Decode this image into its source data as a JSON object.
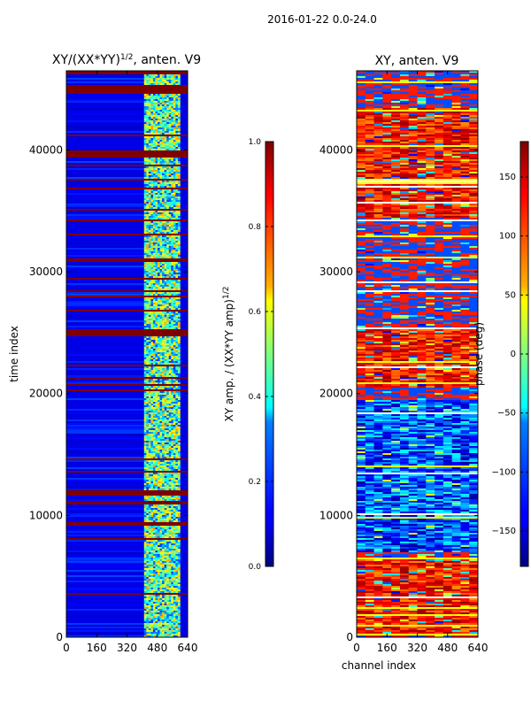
{
  "figure": {
    "suptitle": "2016-01-22 0.0-24.0",
    "shared_xlabel": "channel index"
  },
  "chart_data": [
    {
      "type": "heatmap",
      "title_main": "XY/(XX*YY)",
      "title_sup": "1/2",
      "title_rest": ", anten. V9",
      "xlabel": "",
      "ylabel": "time index",
      "xlim": [
        0,
        640
      ],
      "ylim": [
        0,
        46500
      ],
      "xticks": [
        0,
        160,
        320,
        480,
        640
      ],
      "yticks": [
        0,
        10000,
        20000,
        30000,
        40000
      ],
      "colormap": "jet",
      "colorbar": {
        "label_main": "XY amp. / (XX*YY amp)",
        "label_sup": "1/2",
        "range": [
          0.0,
          1.0
        ],
        "ticks": [
          0.0,
          0.2,
          0.4,
          0.6,
          0.8,
          1.0
        ],
        "tick_labels": [
          "0.0",
          "0.2",
          "0.4",
          "0.6",
          "0.8",
          "1.0"
        ]
      },
      "flagged_time_bands": [
        [
          44600,
          45300
        ],
        [
          39400,
          39900
        ],
        [
          24700,
          25300
        ],
        [
          11600,
          12000
        ],
        [
          10900,
          11200
        ],
        [
          9200,
          9500
        ],
        [
          29300,
          29500
        ],
        [
          35000,
          35100
        ],
        [
          33000,
          33200
        ],
        [
          20200,
          20400
        ]
      ],
      "description_values": {
        "low_channel_level": 0.1,
        "high_channel_start": 410,
        "high_channel_end": 600,
        "high_channel_level": 0.45
      }
    },
    {
      "type": "heatmap",
      "title_main": "XY, anten. V9",
      "xlabel": "channel index",
      "ylabel": "",
      "xlim": [
        0,
        640
      ],
      "ylim": [
        0,
        46500
      ],
      "xticks": [
        0,
        160,
        320,
        480,
        640
      ],
      "yticks": [
        0,
        10000,
        20000,
        30000,
        40000
      ],
      "colormap": "jet",
      "colorbar": {
        "label_main": "phase (deg)",
        "range": [
          -180,
          180
        ],
        "ticks": [
          -150,
          -100,
          -50,
          0,
          50,
          100,
          150
        ],
        "tick_labels": [
          "−150",
          "−100",
          "−50",
          "0",
          "50",
          "100",
          "150"
        ]
      },
      "hot_time_bands": [
        [
          34500,
          43500
        ],
        [
          20500,
          25500
        ],
        [
          200,
          6500
        ]
      ],
      "cold_time_band": [
        7000,
        19500
      ]
    }
  ]
}
